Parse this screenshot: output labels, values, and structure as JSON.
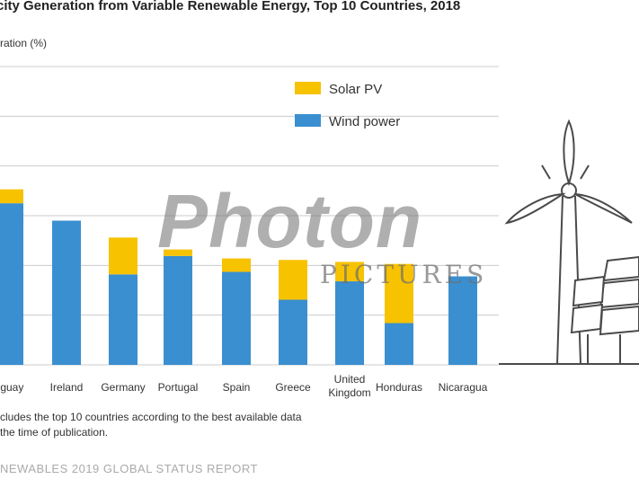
{
  "title": "city Generation from Variable Renewable Energy, Top 10 Countries, 2018",
  "ylabel_text": "ration (%)",
  "notes": [
    "cludes the top 10 countries according to the best available data",
    " the time of publication."
  ],
  "footer": "NEWABLES 2019 GLOBAL STATUS REPORT",
  "watermark": {
    "main": "Photon",
    "sub": "PICTURES"
  },
  "colors": {
    "solar": "#F7C200",
    "wind": "#3A8FD0",
    "grid": "#cccccc",
    "illustration": "#4a4a4a"
  },
  "chart_data": {
    "type": "bar",
    "stacked": true,
    "title": "city Generation from Variable Renewable Energy, Top 10 Countries, 2018",
    "ylabel": "ration (%)",
    "xlabel": "",
    "categories": [
      "Uruguay",
      "Ireland",
      "Germany",
      "Portugal",
      "Spain",
      "Greece",
      "United Kingdom",
      "Honduras",
      "Nicaragua"
    ],
    "category_lines": [
      [
        "uguay"
      ],
      [
        "Ireland"
      ],
      [
        "Germany"
      ],
      [
        "Portugal"
      ],
      [
        "Spain"
      ],
      [
        "Greece"
      ],
      [
        "United",
        "Kingdom"
      ],
      [
        "Honduras"
      ],
      [
        "Nicaragua"
      ]
    ],
    "series": [
      {
        "name": "Wind power",
        "color": "#3A8FD0",
        "values": [
          32.5,
          29.0,
          18.2,
          21.9,
          18.7,
          13.1,
          16.8,
          8.4,
          17.8
        ]
      },
      {
        "name": "Solar PV",
        "color": "#F7C200",
        "values": [
          2.8,
          0.0,
          7.4,
          1.3,
          2.7,
          8.0,
          3.9,
          11.9,
          0.0
        ]
      }
    ],
    "ylim": [
      0,
      60
    ],
    "grid": true,
    "legend": {
      "position": "top-right",
      "order": [
        "Solar PV",
        "Wind power"
      ]
    }
  }
}
